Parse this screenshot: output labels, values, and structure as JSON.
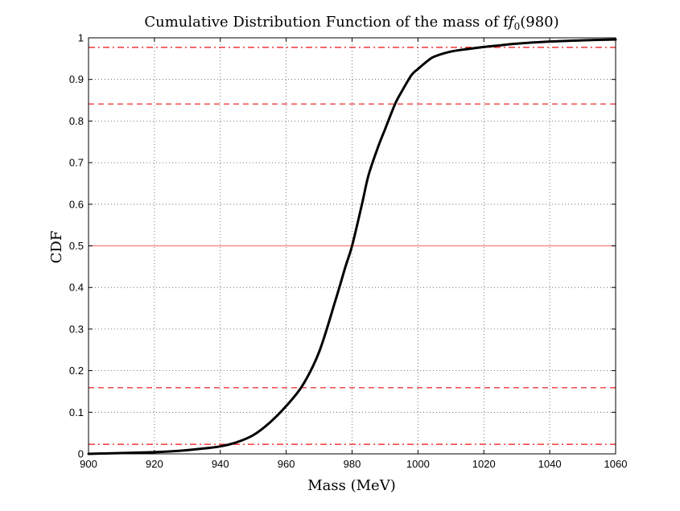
{
  "chart_data": {
    "type": "line",
    "title": "Cumulative Distribution Function of the mass of f",
    "title_math": {
      "symbol": "f",
      "subscript": "0",
      "argument": "(980)"
    },
    "xlabel": "Mass (MeV)",
    "ylabel": "CDF",
    "xlim": [
      900,
      1060
    ],
    "ylim": [
      0,
      1
    ],
    "grid": true,
    "x_ticks": [
      900,
      920,
      940,
      960,
      980,
      1000,
      1020,
      1040,
      1060
    ],
    "y_ticks": [
      0,
      0.1,
      0.2,
      0.3,
      0.4,
      0.5,
      0.6,
      0.7,
      0.8,
      0.9,
      1
    ],
    "x_tick_labels": [
      "900",
      "920",
      "940",
      "960",
      "980",
      "1000",
      "1020",
      "1040",
      "1060"
    ],
    "y_tick_labels": [
      "0",
      "0.1",
      "0.2",
      "0.3",
      "0.4",
      "0.5",
      "0.6",
      "0.7",
      "0.8",
      "0.9",
      "1"
    ],
    "series": [
      {
        "name": "CDF",
        "color": "#000000",
        "x": [
          900,
          910,
          920,
          925,
          930,
          935,
          940,
          945,
          950,
          955,
          960,
          965,
          970,
          975,
          978,
          980,
          983,
          985,
          988,
          990,
          993,
          995,
          998,
          1000,
          1003,
          1005,
          1010,
          1015,
          1020,
          1025,
          1030,
          1040,
          1050,
          1060
        ],
        "y": [
          0.0,
          0.002,
          0.004,
          0.006,
          0.009,
          0.013,
          0.018,
          0.028,
          0.045,
          0.075,
          0.115,
          0.165,
          0.245,
          0.37,
          0.45,
          0.5,
          0.6,
          0.67,
          0.74,
          0.78,
          0.84,
          0.87,
          0.91,
          0.925,
          0.945,
          0.955,
          0.967,
          0.973,
          0.978,
          0.982,
          0.986,
          0.991,
          0.994,
          0.996
        ]
      }
    ],
    "reference_lines": [
      {
        "y": 0.977,
        "style": "dash-dot",
        "color": "#ee1111"
      },
      {
        "y": 0.841,
        "style": "dashed",
        "color": "#ee1111"
      },
      {
        "y": 0.5,
        "style": "solid",
        "color": "#ff7a7a"
      },
      {
        "y": 0.159,
        "style": "dashed",
        "color": "#ee1111"
      },
      {
        "y": 0.023,
        "style": "dash-dot",
        "color": "#ee1111"
      }
    ]
  }
}
